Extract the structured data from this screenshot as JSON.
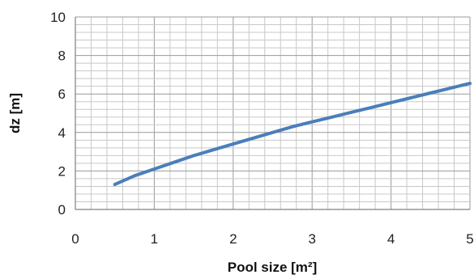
{
  "chart_data": {
    "type": "line",
    "title": "",
    "xlabel": "Pool size [m²]",
    "ylabel": "dz [m]",
    "xlim": [
      0,
      5
    ],
    "ylim": [
      0,
      10
    ],
    "xticks": [
      "0",
      "1",
      "2",
      "3",
      "4",
      "5"
    ],
    "yticks": [
      "0",
      "2",
      "4",
      "6",
      "8",
      "10"
    ],
    "grid": true,
    "series": [
      {
        "color": "#4a7ebb",
        "x": [
          0.5,
          0.75,
          1.0,
          1.25,
          1.5,
          1.75,
          2.0,
          2.25,
          2.5,
          2.75,
          3.0,
          3.25,
          3.5,
          3.75,
          4.0,
          4.25,
          4.5,
          4.75,
          5.0
        ],
        "y": [
          1.3,
          1.75,
          2.1,
          2.45,
          2.8,
          3.1,
          3.4,
          3.7,
          4.0,
          4.3,
          4.55,
          4.8,
          5.05,
          5.3,
          5.55,
          5.8,
          6.05,
          6.3,
          6.55
        ]
      }
    ]
  },
  "colors": {
    "grid_minor": "#c8c8c8",
    "grid_major": "#9a9a9a",
    "axis": "#808080"
  }
}
